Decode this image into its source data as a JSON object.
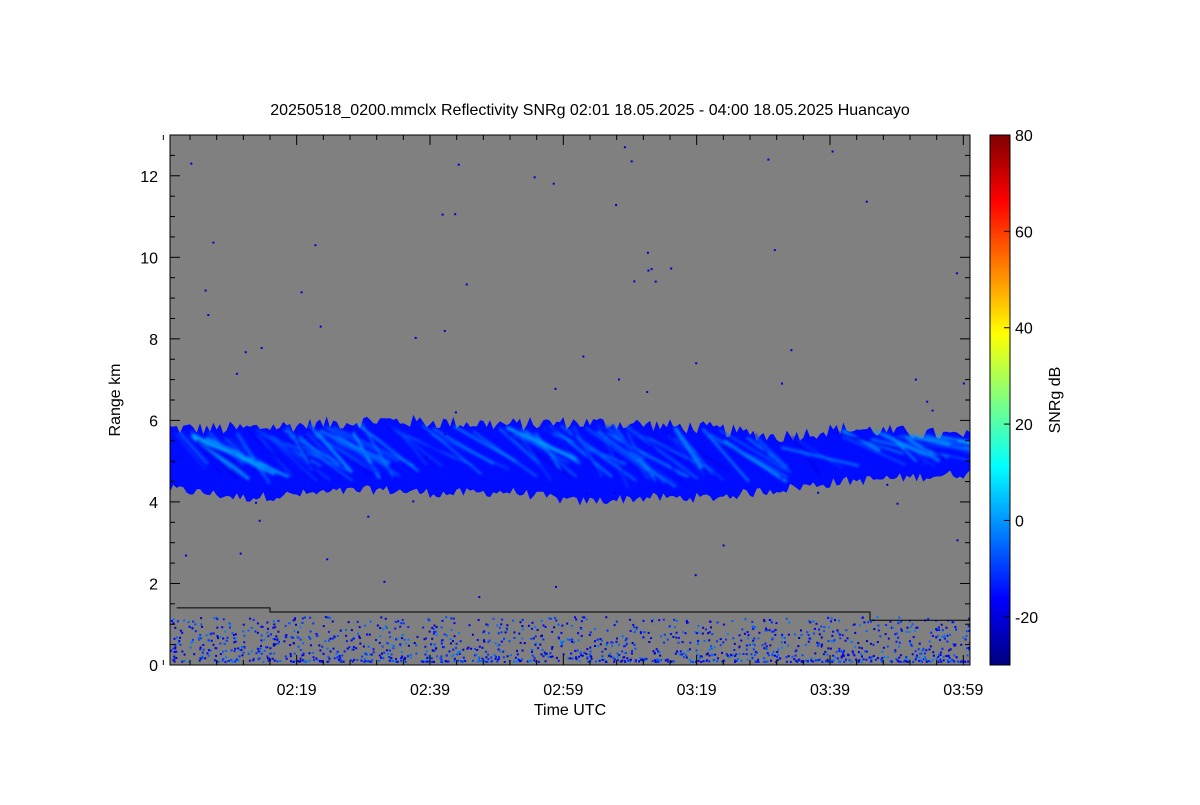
{
  "chart_data": {
    "type": "heatmap",
    "title": "20250518_0200.mmclx Reflectivity SNRg   02:01 18.05.2025 - 04:00 18.05.2025 Huancayo",
    "xlabel": "Time UTC",
    "ylabel": "Range km",
    "x_ticks": [
      "02:19",
      "02:39",
      "02:59",
      "03:19",
      "03:39",
      "03:59"
    ],
    "x_tick_minutes": [
      18,
      38,
      58,
      78,
      98,
      118
    ],
    "xlim_minutes": [
      -1,
      119
    ],
    "y_ticks": [
      0,
      2,
      4,
      6,
      8,
      10,
      12
    ],
    "ylim": [
      0,
      13
    ],
    "colorbar": {
      "label": "SNRg dB",
      "ticks": [
        -20,
        0,
        20,
        40,
        60,
        80
      ],
      "range": [
        -30,
        80
      ],
      "colormap": [
        "#00007f",
        "#0000ff",
        "#007fff",
        "#00ffff",
        "#7fff7f",
        "#ffff00",
        "#ff7f00",
        "#ff0000",
        "#7f0000"
      ]
    },
    "background_color": "#808080",
    "cloud_layer": {
      "top_km": [
        5.8,
        5.8,
        5.9,
        6.0,
        5.95,
        5.9,
        5.95,
        5.9,
        5.8,
        5.6,
        5.8,
        5.7,
        5.6
      ],
      "base_km": [
        4.3,
        4.1,
        4.2,
        4.3,
        4.2,
        4.25,
        4.0,
        4.1,
        4.1,
        4.3,
        4.5,
        4.6,
        4.7
      ],
      "x_minutes": [
        0,
        10,
        20,
        30,
        40,
        50,
        60,
        70,
        80,
        90,
        100,
        110,
        119
      ],
      "snr_db_range": [
        -20,
        5
      ]
    },
    "boundary_line_km": [
      {
        "from_min": 0,
        "to_min": 14,
        "value": 1.4
      },
      {
        "from_min": 14,
        "to_min": 104,
        "value": 1.3
      },
      {
        "from_min": 104,
        "to_min": 119,
        "value": 1.1
      }
    ],
    "noise_layer_km": [
      0.1,
      1.2
    ]
  }
}
